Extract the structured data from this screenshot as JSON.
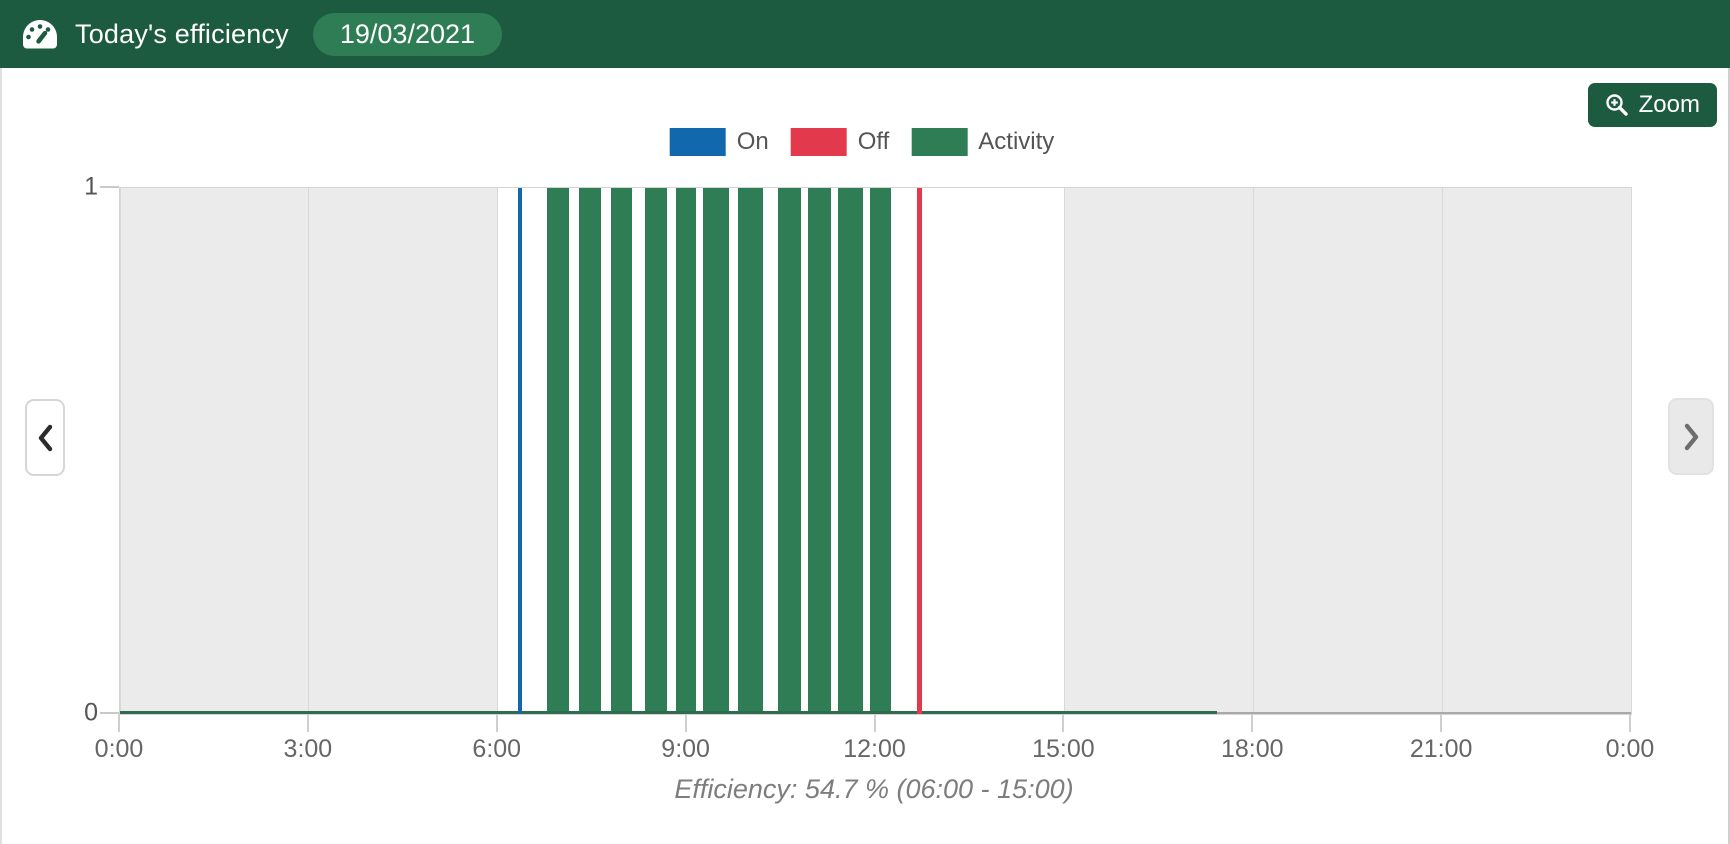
{
  "header": {
    "title": "Today's efficiency",
    "date_badge": "19/03/2021",
    "icon": "tachometer-icon"
  },
  "toolbar": {
    "zoom_label": "Zoom",
    "zoom_icon": "magnifier-plus-icon"
  },
  "colors": {
    "header_bg": "#1d5b40",
    "badge_bg": "#2e7d55",
    "on": "#1268ad",
    "off": "#e23a4c",
    "activity": "#2e7d55",
    "off_shift_band": "#ebebeb",
    "activity_baseline": "#2f6b4e"
  },
  "chart_data": {
    "type": "bar",
    "title": "",
    "xlabel": "",
    "ylabel": "",
    "x_unit": "time of day",
    "x_range_hours": [
      0,
      24
    ],
    "ylim": [
      0,
      1
    ],
    "x_tick_hours": [
      0,
      3,
      6,
      9,
      12,
      15,
      18,
      21,
      24
    ],
    "x_tick_labels": [
      "0:00",
      "3:00",
      "6:00",
      "9:00",
      "12:00",
      "15:00",
      "18:00",
      "21:00",
      "0:00"
    ],
    "y_tick_labels": [
      "0",
      "1"
    ],
    "grid": "vertical",
    "legend_position": "top-center",
    "legend": [
      {
        "label": "On",
        "color": "#1268ad"
      },
      {
        "label": "Off",
        "color": "#e23a4c"
      },
      {
        "label": "Activity",
        "color": "#2e7d55"
      }
    ],
    "off_shift_bands_hours": [
      [
        0,
        6
      ],
      [
        15,
        24
      ]
    ],
    "events": {
      "machine_on_h": 6.35,
      "machine_on_label": "06:21",
      "machine_off_h": 12.7,
      "machine_off_label": "12:42"
    },
    "activity_value": 1,
    "activity_intervals_hours": [
      [
        6.75,
        7.16
      ],
      [
        7.26,
        7.67
      ],
      [
        7.77,
        8.17
      ],
      [
        8.31,
        8.72
      ],
      [
        8.8,
        9.18
      ],
      [
        9.23,
        9.7
      ],
      [
        9.78,
        10.24
      ],
      [
        10.42,
        10.85
      ],
      [
        10.9,
        11.32
      ],
      [
        11.37,
        11.83
      ],
      [
        11.88,
        12.28
      ]
    ],
    "activity_recorded_span_hours": [
      0,
      17.42
    ],
    "caption": "Efficiency: 54.7 % (06:00 - 15:00)"
  }
}
